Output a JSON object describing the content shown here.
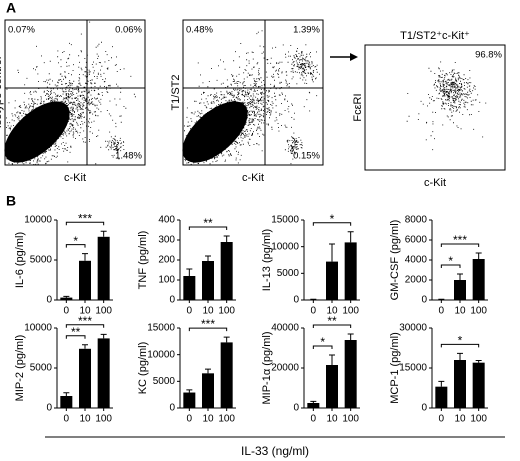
{
  "panel_a": {
    "label": "A",
    "plots": [
      {
        "ylabel": "Isotype control",
        "xlabel": "c-Kit",
        "quadrants": {
          "upper_left": "0.07%",
          "upper_right": "0.06%",
          "lower_right": "1.48%"
        }
      },
      {
        "ylabel": "T1/ST2",
        "xlabel": "c-Kit",
        "quadrants": {
          "upper_left": "0.48%",
          "upper_right": "1.39%",
          "lower_right": "0.15%"
        }
      },
      {
        "title": "T1/ST2⁺c-Kit⁺",
        "ylabel": "FcεRI",
        "xlabel": "c-Kit",
        "quadrants": {
          "upper_right": "96.8%"
        }
      }
    ]
  },
  "panel_b": {
    "label": "B",
    "xlabel": "IL-33 (ng/ml)"
  },
  "chart_data": [
    {
      "type": "bar",
      "ylabel": "IL-6 (pg/ml)",
      "categories": [
        "0",
        "10",
        "100"
      ],
      "values": [
        300,
        4900,
        7900
      ],
      "errors": [
        150,
        900,
        700
      ],
      "color": "#000000",
      "ylim": [
        0,
        10000
      ],
      "yticks": [
        0,
        5000,
        10000
      ],
      "annotations": [
        {
          "label": "*",
          "from": 0,
          "to": 1
        },
        {
          "label": "***",
          "from": 0,
          "to": 2
        }
      ]
    },
    {
      "type": "bar",
      "ylabel": "TNF (pg/ml)",
      "categories": [
        "0",
        "10",
        "100"
      ],
      "values": [
        120,
        195,
        290
      ],
      "errors": [
        35,
        25,
        30
      ],
      "color": "#000000",
      "ylim": [
        0,
        400
      ],
      "yticks": [
        0,
        100,
        200,
        300,
        400
      ],
      "annotations": [
        {
          "label": "**",
          "from": 0,
          "to": 2
        }
      ]
    },
    {
      "type": "bar",
      "ylabel": "IL-13 (pg/ml)",
      "categories": [
        "0",
        "10",
        "100"
      ],
      "values": [
        100,
        7200,
        10800
      ],
      "errors": [
        50,
        3300,
        2000
      ],
      "color": "#000000",
      "ylim": [
        0,
        15000
      ],
      "yticks": [
        0,
        5000,
        10000,
        15000
      ],
      "annotations": [
        {
          "label": "*",
          "from": 0,
          "to": 2
        }
      ]
    },
    {
      "type": "bar",
      "ylabel": "GM-CSF (pg/ml)",
      "categories": [
        "0",
        "10",
        "100"
      ],
      "values": [
        50,
        2000,
        4100
      ],
      "errors": [
        30,
        600,
        600
      ],
      "color": "#000000",
      "ylim": [
        0,
        8000
      ],
      "yticks": [
        0,
        2000,
        4000,
        6000,
        8000
      ],
      "annotations": [
        {
          "label": "*",
          "from": 0,
          "to": 1
        },
        {
          "label": "***",
          "from": 0,
          "to": 2
        }
      ]
    },
    {
      "type": "bar",
      "ylabel": "MIP-2 (pg/ml)",
      "categories": [
        "0",
        "10",
        "100"
      ],
      "values": [
        1500,
        7400,
        8700
      ],
      "errors": [
        400,
        500,
        500
      ],
      "color": "#000000",
      "ylim": [
        0,
        10000
      ],
      "yticks": [
        0,
        5000,
        10000
      ],
      "annotations": [
        {
          "label": "**",
          "from": 0,
          "to": 1
        },
        {
          "label": "***",
          "from": 0,
          "to": 2
        }
      ]
    },
    {
      "type": "bar",
      "ylabel": "KC (pg/ml)",
      "categories": [
        "0",
        "10",
        "100"
      ],
      "values": [
        2900,
        6500,
        12300
      ],
      "errors": [
        500,
        800,
        1000
      ],
      "color": "#000000",
      "ylim": [
        0,
        15000
      ],
      "yticks": [
        0,
        5000,
        10000,
        15000
      ],
      "annotations": [
        {
          "label": "***",
          "from": 0,
          "to": 2
        }
      ]
    },
    {
      "type": "bar",
      "ylabel": "MIP-1α (pg/ml)",
      "categories": [
        "0",
        "10",
        "100"
      ],
      "values": [
        2500,
        21500,
        34000
      ],
      "errors": [
        800,
        5000,
        3000
      ],
      "color": "#000000",
      "ylim": [
        0,
        40000
      ],
      "yticks": [
        0,
        20000,
        40000
      ],
      "annotations": [
        {
          "label": "*",
          "from": 0,
          "to": 1
        },
        {
          "label": "**",
          "from": 0,
          "to": 2
        }
      ]
    },
    {
      "type": "bar",
      "ylabel": "MCP-1 (pg/ml)",
      "categories": [
        "0",
        "10",
        "100"
      ],
      "values": [
        8000,
        18000,
        17000
      ],
      "errors": [
        2000,
        2500,
        800
      ],
      "color": "#000000",
      "ylim": [
        0,
        30000
      ],
      "yticks": [
        0,
        15000,
        30000
      ],
      "annotations": [
        {
          "label": "*",
          "from": 0,
          "to": 2
        }
      ]
    }
  ]
}
